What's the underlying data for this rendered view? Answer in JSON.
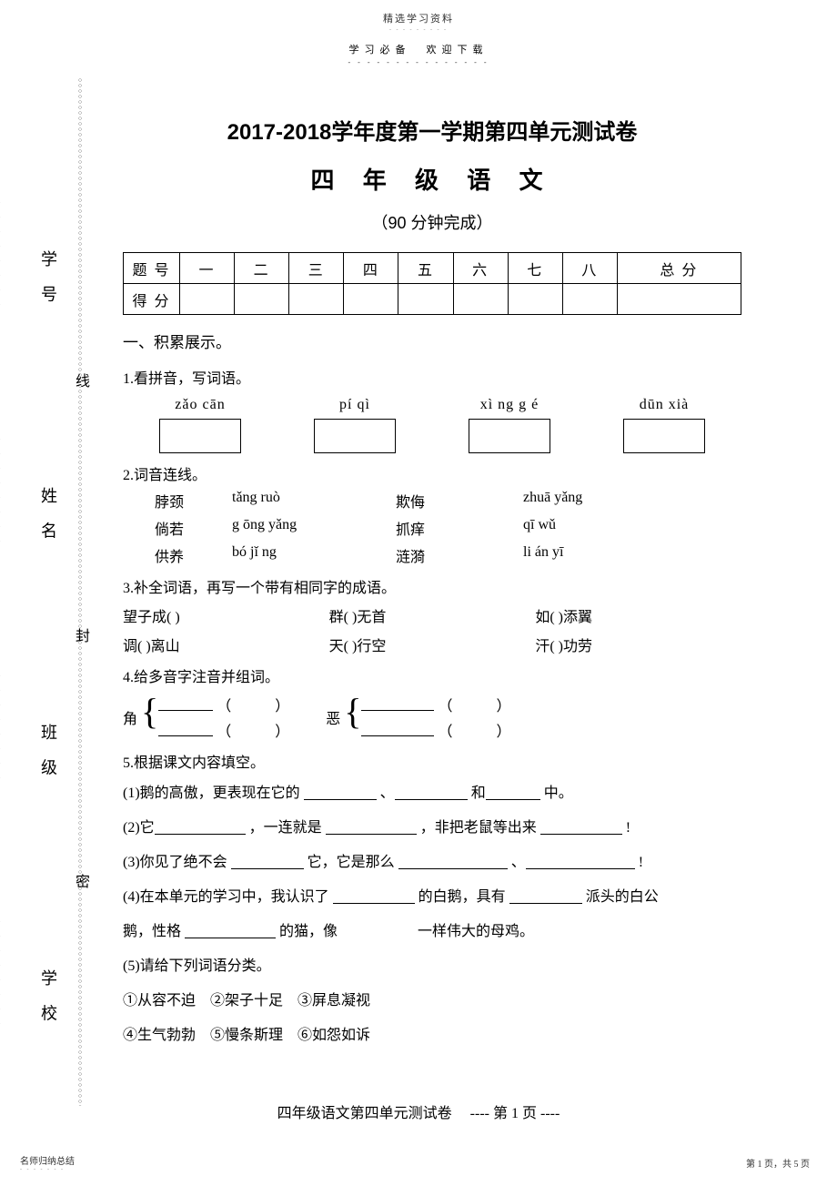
{
  "top": {
    "title_small": "精选学习资料",
    "sub_left": "学习必备",
    "sub_right": "欢迎下载"
  },
  "binding": {
    "labels": [
      "学 号",
      "姓 名",
      "班 级",
      "学 校"
    ],
    "seals": [
      "线",
      "封",
      "密"
    ]
  },
  "main": {
    "title1": "2017-2018学年度第一学期第四单元测试卷",
    "title2": "四 年 级 语 文",
    "title3": "（90 分钟完成）"
  },
  "score_table": {
    "row1": [
      "题 号",
      "一",
      "二",
      "三",
      "四",
      "五",
      "六",
      "七",
      "八",
      "总 分"
    ],
    "row2_label": "得 分"
  },
  "sec1": {
    "heading": "一、积累展示。",
    "q1": "1.看拼音，写词语。",
    "pinyin": [
      "zǎo cān",
      "pí  qì",
      "xì ng g é",
      "dūn xià"
    ],
    "q2": "2.词音连线。",
    "match": [
      [
        "脖颈",
        "tǎng ruò",
        "欺侮",
        "zhuā yǎng"
      ],
      [
        "倘若",
        "g ōng yǎng",
        "抓痒",
        "qī  wǔ"
      ],
      [
        "供养",
        "bó jǐ ng",
        "涟漪",
        "li án yī"
      ]
    ],
    "q3": "3.补全词语，再写一个带有相同字的成语。",
    "fill_rows": [
      [
        "望子成(         )",
        "群(       )无首",
        "如(        )添翼"
      ],
      [
        "调(       )离山",
        "天(       )行空",
        "汗(        )功劳"
      ]
    ],
    "q4": "4.给多音字注音并组词。",
    "brace1_char": "角",
    "brace2_char": "恶",
    "q5": "5.根据课文内容填空。",
    "lines": {
      "l1a": "(1)鹅的高傲，更表现在它的 ",
      "l1b": "、",
      "l1c": "和",
      "l1d": "中。",
      "l2a": "(2)它",
      "l2b": "，一连就是 ",
      "l2c": "，非把老鼠等出来 ",
      "l2d": "!",
      "l3a": "(3)你见了绝不会 ",
      "l3b": "它，它是那么 ",
      "l3c": "、",
      "l3d": " !",
      "l4a": "(4)在本单元的学习中，我认识了 ",
      "l4b": "的白鹅，具有 ",
      "l4c": "派头的白公",
      "l4d": "鹅，性格 ",
      "l4e": "的猫，像 ",
      "l4f": "一样伟大的母鸡。",
      "l5": "(5)请给下列词语分类。",
      "l6": "①从容不迫　②架子十足　③屏息凝视",
      "l7": "④生气勃勃　⑤慢条斯理　⑥如怨如诉"
    }
  },
  "footer": {
    "page": "四年级语文第四单元测试卷　 ---- 第 1 页 ----",
    "bottom_left": "名师归纳总结",
    "bottom_right": "第 1 页，共 5 页"
  }
}
